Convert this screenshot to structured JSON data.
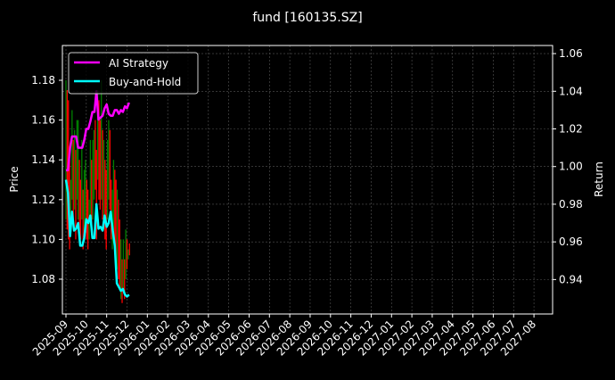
{
  "title": "fund [160135.SZ]",
  "colors": {
    "background": "#000000",
    "axis": "#ffffff",
    "grid": "#555555",
    "ai_strategy": "#ff00ff",
    "buy_and_hold": "#00ffff",
    "candle_up": "#008000",
    "candle_down": "#ff0000"
  },
  "chart_data": {
    "type": "line",
    "title": "fund [160135.SZ]",
    "xlabel": "",
    "ylabel": "Price",
    "ylabel_right": "Return",
    "ylim": [
      1.0625,
      1.1975
    ],
    "ylim_right": [
      0.9217,
      1.0643
    ],
    "yticks": [
      1.08,
      1.1,
      1.12,
      1.14,
      1.16,
      1.18
    ],
    "yticks_right": [
      0.94,
      0.96,
      0.98,
      1.0,
      1.02,
      1.04,
      1.06
    ],
    "x_ticks": [
      "2025-09",
      "2025-10",
      "2025-11",
      "2025-12",
      "2026-01",
      "2026-02",
      "2026-03",
      "2026-04",
      "2026-05",
      "2026-06",
      "2026-07",
      "2026-08",
      "2026-09",
      "2026-10",
      "2026-11",
      "2026-12",
      "2027-01",
      "2027-02",
      "2027-03",
      "2027-04",
      "2027-05",
      "2027-06",
      "2027-07",
      "2027-08"
    ],
    "grid": true,
    "legend": {
      "position": "upper left",
      "entries": [
        "AI Strategy",
        "Buy-and-Hold"
      ]
    },
    "price_range_bars": {
      "description": "daily price high-low bars (green=up, red=down) on left axis",
      "x_month_offsets": [
        0.0,
        0.06,
        0.12,
        0.18,
        0.24,
        0.3,
        0.36,
        0.42,
        0.48,
        0.54,
        0.6,
        0.66,
        0.72,
        0.78,
        0.84,
        0.9,
        0.96,
        1.02,
        1.08,
        1.14,
        1.2,
        1.26,
        1.32,
        1.38,
        1.44,
        1.5,
        1.56,
        1.62,
        1.68,
        1.74,
        1.8,
        1.86,
        1.92,
        1.98,
        2.04,
        2.1,
        2.16,
        2.22,
        2.28,
        2.34,
        2.4,
        2.46,
        2.52,
        2.58,
        2.64,
        2.7,
        2.76,
        2.82,
        2.88,
        2.94,
        3.0,
        3.06,
        3.12
      ],
      "high": [
        1.18,
        1.175,
        1.17,
        1.14,
        1.13,
        1.165,
        1.15,
        1.155,
        1.145,
        1.16,
        1.16,
        1.14,
        1.13,
        1.15,
        1.125,
        1.135,
        1.14,
        1.13,
        1.125,
        1.12,
        1.15,
        1.14,
        1.15,
        1.155,
        1.16,
        1.145,
        1.175,
        1.17,
        1.16,
        1.18,
        1.155,
        1.15,
        1.14,
        1.135,
        1.15,
        1.16,
        1.155,
        1.13,
        1.125,
        1.14,
        1.135,
        1.13,
        1.125,
        1.12,
        1.11,
        1.1,
        1.09,
        1.1,
        1.09,
        1.105,
        1.1,
        1.095,
        1.098
      ],
      "low": [
        1.11,
        1.105,
        1.1,
        1.095,
        1.105,
        1.12,
        1.11,
        1.115,
        1.1,
        1.12,
        1.11,
        1.105,
        1.1,
        1.11,
        1.095,
        1.1,
        1.105,
        1.1,
        1.095,
        1.1,
        1.11,
        1.105,
        1.11,
        1.12,
        1.125,
        1.1,
        1.13,
        1.12,
        1.115,
        1.12,
        1.11,
        1.105,
        1.1,
        1.095,
        1.11,
        1.12,
        1.115,
        1.1,
        1.095,
        1.1,
        1.095,
        1.09,
        1.085,
        1.08,
        1.075,
        1.07,
        1.068,
        1.075,
        1.07,
        1.08,
        1.085,
        1.09,
        1.092
      ],
      "up": [
        true,
        false,
        false,
        false,
        true,
        true,
        false,
        true,
        false,
        true,
        true,
        false,
        false,
        true,
        false,
        true,
        true,
        false,
        false,
        true,
        true,
        false,
        true,
        true,
        false,
        false,
        true,
        false,
        false,
        true,
        false,
        true,
        false,
        false,
        true,
        true,
        false,
        false,
        true,
        true,
        false,
        false,
        true,
        false,
        false,
        true,
        false,
        true,
        false,
        true,
        false,
        true,
        false
      ]
    },
    "series": [
      {
        "name": "AI Strategy",
        "axis": "right",
        "x_month_offsets": [
          0.0,
          0.1,
          0.2,
          0.3,
          0.4,
          0.5,
          0.6,
          0.7,
          0.8,
          0.9,
          1.0,
          1.1,
          1.2,
          1.3,
          1.4,
          1.5,
          1.6,
          1.7,
          1.8,
          1.9,
          2.0,
          2.1,
          2.2,
          2.3,
          2.4,
          2.5,
          2.6,
          2.7,
          2.8,
          2.9,
          3.0,
          3.1
        ],
        "values": [
          0.998,
          0.998,
          1.01,
          1.016,
          1.016,
          1.016,
          1.01,
          1.01,
          1.01,
          1.014,
          1.02,
          1.02,
          1.024,
          1.029,
          1.029,
          1.04,
          1.025,
          1.026,
          1.027,
          1.031,
          1.033,
          1.028,
          1.027,
          1.027,
          1.03,
          1.03,
          1.028,
          1.03,
          1.029,
          1.032,
          1.031,
          1.034
        ]
      },
      {
        "name": "Buy-and-Hold",
        "axis": "right",
        "x_month_offsets": [
          0.0,
          0.1,
          0.2,
          0.3,
          0.4,
          0.5,
          0.6,
          0.7,
          0.8,
          0.9,
          1.0,
          1.1,
          1.2,
          1.3,
          1.4,
          1.5,
          1.6,
          1.7,
          1.8,
          1.9,
          2.0,
          2.1,
          2.2,
          2.3,
          2.4,
          2.5,
          2.6,
          2.7,
          2.8,
          2.9,
          3.0,
          3.1
        ],
        "values": [
          0.993,
          0.986,
          0.963,
          0.976,
          0.966,
          0.967,
          0.97,
          0.958,
          0.958,
          0.962,
          0.972,
          0.97,
          0.974,
          0.962,
          0.962,
          0.98,
          0.967,
          0.968,
          0.966,
          0.974,
          0.968,
          0.97,
          0.976,
          0.966,
          0.958,
          0.938,
          0.936,
          0.934,
          0.935,
          0.932,
          0.931,
          0.932
        ]
      }
    ]
  }
}
